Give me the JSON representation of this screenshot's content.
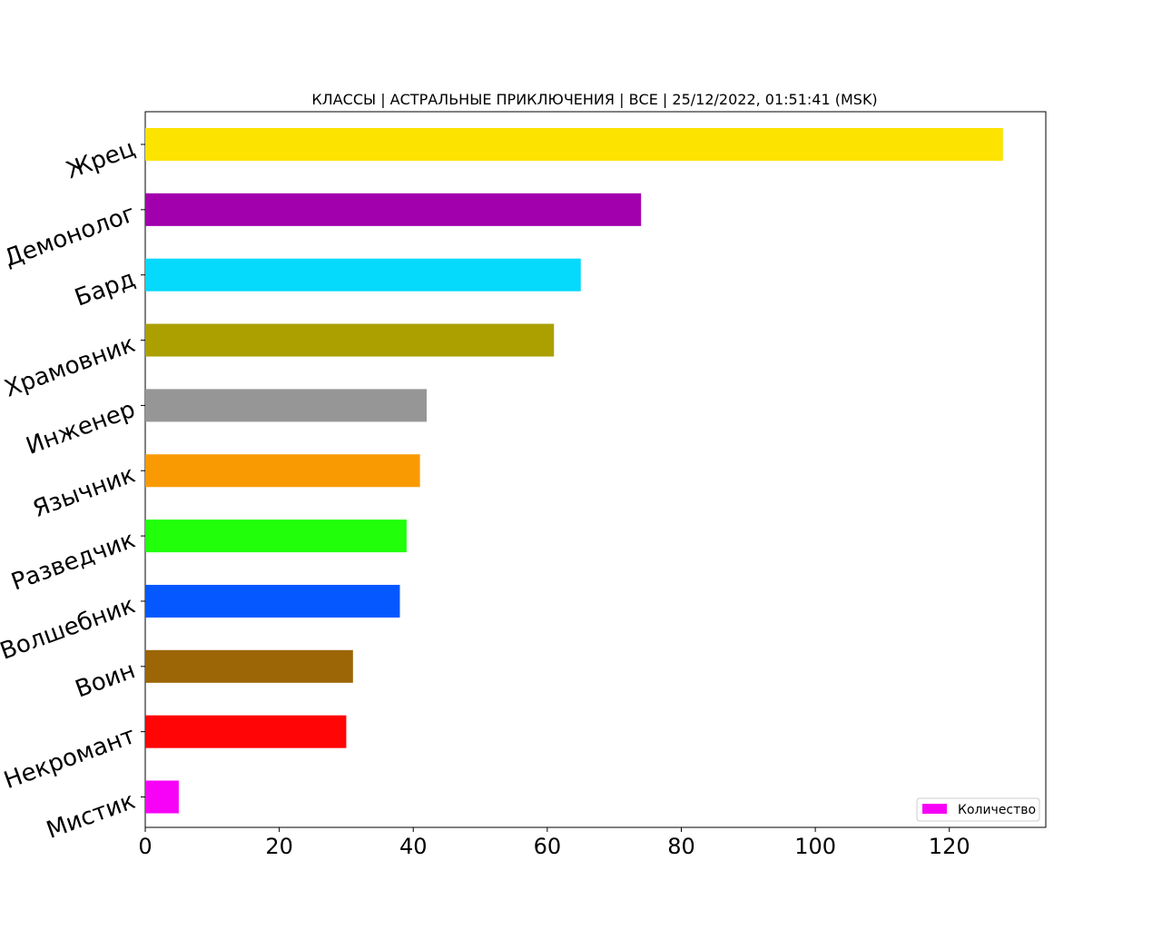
{
  "chart_data": {
    "type": "bar",
    "orientation": "horizontal",
    "title": "КЛАССЫ | АСТРАЛЬНЫЕ ПРИКЛЮЧЕНИЯ | ВСЕ | 25/12/2022, 01:51:41 (MSK)",
    "xlabel": "",
    "ylabel": "",
    "categories": [
      "Жрец",
      "Демонолог",
      "Бард",
      "Храмовник",
      "Инженер",
      "Язычник",
      "Разведчик",
      "Волшебник",
      "Воин",
      "Некромант",
      "Мистик"
    ],
    "values": [
      128,
      74,
      65,
      61,
      42,
      41,
      39,
      38,
      31,
      30,
      5
    ],
    "colors": [
      "#fce300",
      "#a300ad",
      "#05d9fc",
      "#aba000",
      "#969696",
      "#fa9a02",
      "#21ff0a",
      "#0558ff",
      "#9c6505",
      "#ff0505",
      "#f702f7"
    ],
    "xlim": [
      0,
      134.4
    ],
    "xticks": [
      0,
      20,
      40,
      60,
      80,
      100,
      120
    ],
    "grid": false,
    "legend": {
      "placement": "lower-right",
      "label": "Количество",
      "color": "#f702f7"
    }
  }
}
